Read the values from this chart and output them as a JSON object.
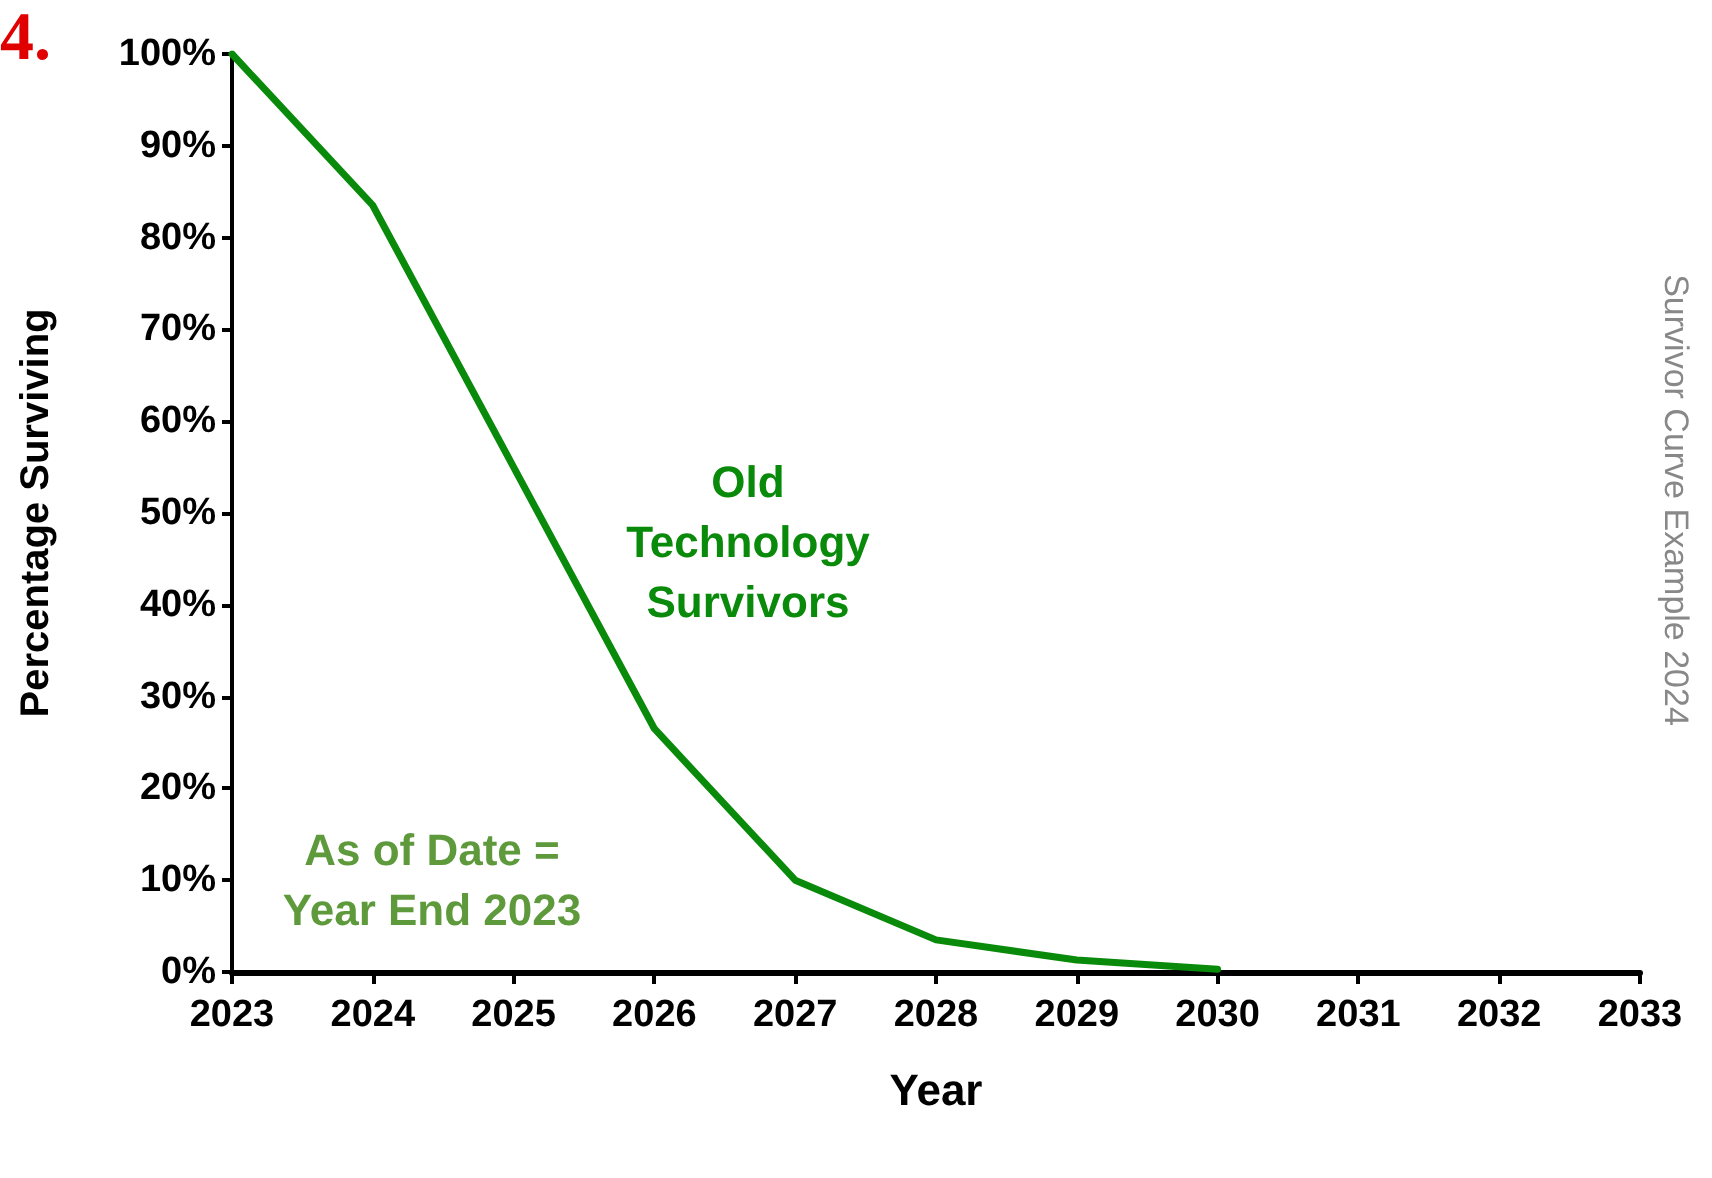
{
  "chart_data": {
    "type": "line",
    "xlabel": "Year",
    "ylabel": "Percentage Surviving",
    "x": [
      2023,
      2024,
      2025,
      2026,
      2027,
      2028,
      2029,
      2030
    ],
    "series": [
      {
        "color": "#0a8a0a",
        "values": [
          100,
          83.5,
          55,
          26.5,
          10,
          3.5,
          1.3,
          0.3
        ]
      }
    ],
    "xlim": [
      2023,
      2033
    ],
    "xticks": [
      2023,
      2024,
      2025,
      2026,
      2027,
      2028,
      2029,
      2030,
      2031,
      2032,
      2033
    ],
    "ylim": [
      0,
      100
    ],
    "yticks": [
      {
        "value": 0,
        "label": "0%"
      },
      {
        "value": 10,
        "label": "10%"
      },
      {
        "value": 20,
        "label": "20%"
      },
      {
        "value": 30,
        "label": "30%"
      },
      {
        "value": 40,
        "label": "40%"
      },
      {
        "value": 50,
        "label": "50%"
      },
      {
        "value": 60,
        "label": "60%"
      },
      {
        "value": 70,
        "label": "70%"
      },
      {
        "value": 80,
        "label": "80%"
      },
      {
        "value": 90,
        "label": "90%"
      },
      {
        "value": 100,
        "label": "100%"
      }
    ],
    "grid": false,
    "marker": "none",
    "line_style": "solid",
    "annotations": [
      "4.",
      "Old\nTechnology\nSurvivors",
      "As of Date =\nYear End 2023",
      "Survivor Curve Example 2024"
    ]
  }
}
